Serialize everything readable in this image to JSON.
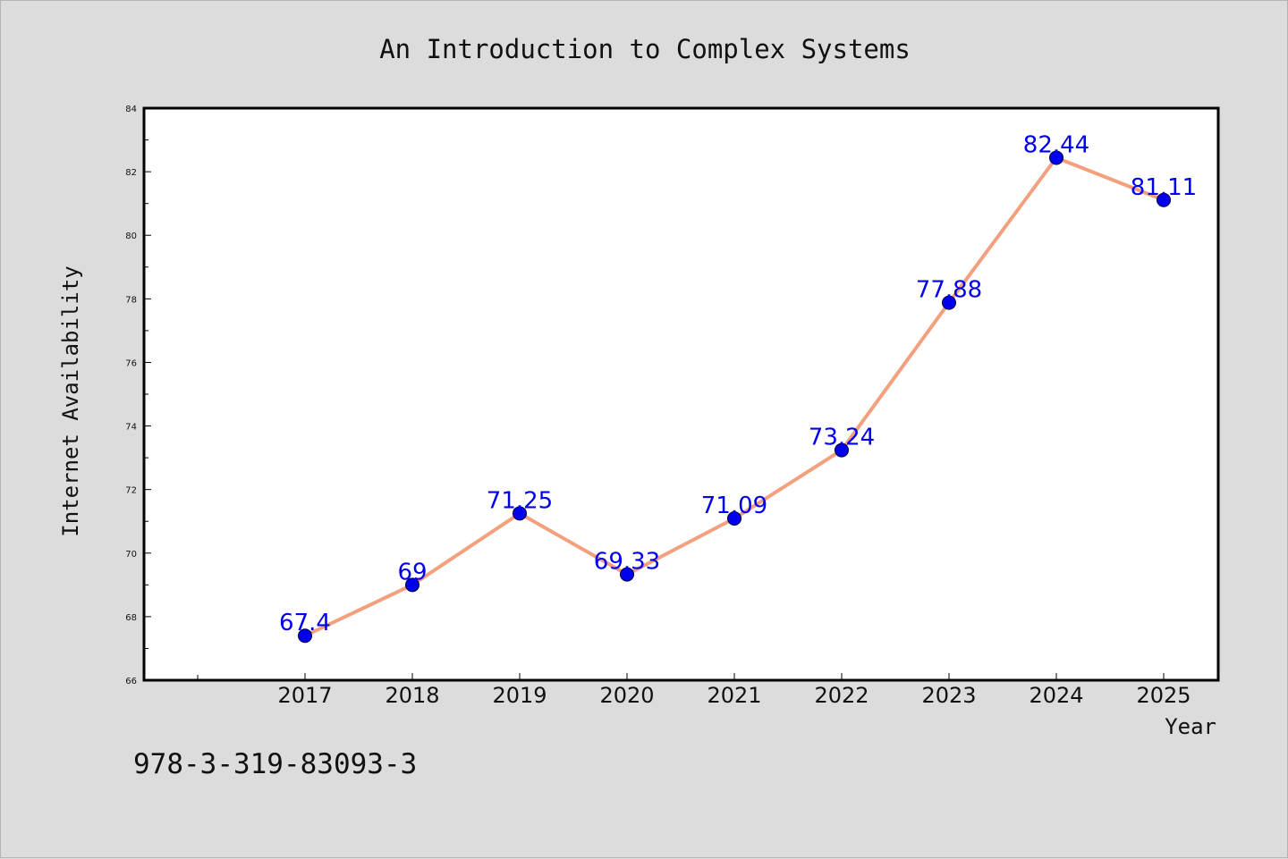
{
  "chart_data": {
    "type": "line",
    "title": "An Introduction to Complex Systems",
    "xlabel": "Year",
    "ylabel": "Internet Availability",
    "x": [
      "2017",
      "2018",
      "2019",
      "2020",
      "2021",
      "2022",
      "2023",
      "2024",
      "2025"
    ],
    "series": [
      {
        "values": [
          67.4,
          69,
          71.25,
          69.33,
          71.09,
          73.24,
          77.88,
          82.44,
          81.11
        ],
        "labels": [
          "67.4",
          "69",
          "71.25",
          "69.33",
          "71.09",
          "73.24",
          "77.88",
          "82.44",
          "81.11"
        ]
      }
    ],
    "ylim": [
      66,
      84
    ],
    "y_ticks": [
      "66",
      "68",
      "70",
      "72",
      "74",
      "76",
      "78",
      "80",
      "82",
      "84"
    ],
    "grid": false,
    "legend": "none",
    "colors": {
      "line": "#f4a07e",
      "marker": "#0000ee",
      "data_label": "#0000ee",
      "plot_background": "#ffffff",
      "page_background": "#dcdcdc"
    }
  },
  "footer": {
    "isbn": "978-3-319-83093-3"
  }
}
